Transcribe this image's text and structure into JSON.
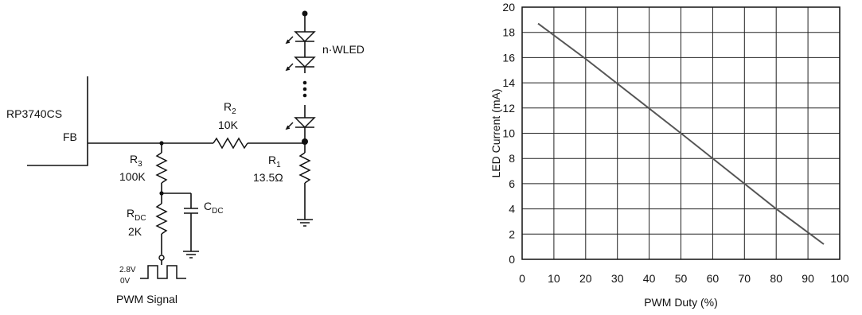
{
  "circuit": {
    "ic_label": "RP3740CS",
    "pin_fb": "FB",
    "r2": {
      "name": "R",
      "sub": "2",
      "value": "10K"
    },
    "r1": {
      "name": "R",
      "sub": "1",
      "value": "13.5Ω"
    },
    "r3": {
      "name": "R",
      "sub": "3",
      "value": "100K"
    },
    "rdc": {
      "name": "R",
      "sub": "DC",
      "value": "2K"
    },
    "cdc": {
      "name": "C",
      "sub": "DC"
    },
    "led_label": "n·WLED",
    "pwm_high": "2.8V",
    "pwm_low": "0V",
    "pwm_label": "PWM Signal"
  },
  "chart_data": {
    "type": "line",
    "title": "",
    "xlabel": "PWM Duty (%)",
    "ylabel": "LED Current (mA)",
    "xlim": [
      0,
      100
    ],
    "ylim": [
      0,
      20
    ],
    "xticks": [
      0,
      10,
      20,
      30,
      40,
      50,
      60,
      70,
      80,
      90,
      100
    ],
    "yticks": [
      0,
      2,
      4,
      6,
      8,
      10,
      12,
      14,
      16,
      18,
      20
    ],
    "grid": true,
    "line_color": "#555555",
    "series": [
      {
        "x": [
          5,
          20,
          50,
          80,
          95
        ],
        "y": [
          18.7,
          15.9,
          10.0,
          4.0,
          1.2
        ]
      }
    ]
  }
}
